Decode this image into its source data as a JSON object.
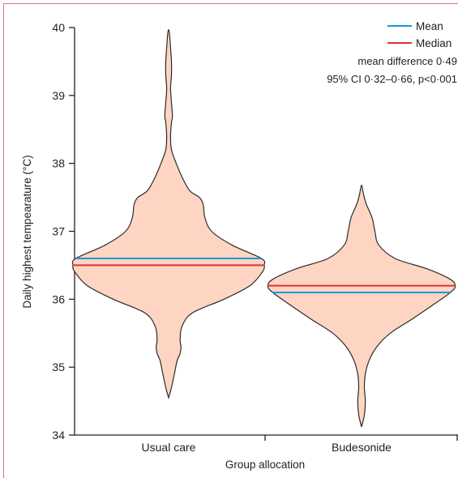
{
  "chart_data": {
    "type": "violin",
    "xlabel": "Group allocation",
    "ylabel": "Daily highest tempearature (°C)",
    "ylim": [
      34,
      40
    ],
    "yticks": [
      "34",
      "35",
      "36",
      "37",
      "38",
      "39",
      "40"
    ],
    "categories": [
      "Usual care",
      "Budesonide"
    ],
    "groups": [
      {
        "name": "Usual care",
        "mean": 36.6,
        "median": 36.5,
        "min": 34.55,
        "max": 39.97,
        "density": [
          [
            34.55,
            0.0
          ],
          [
            34.7,
            0.03
          ],
          [
            34.9,
            0.06
          ],
          [
            35.1,
            0.09
          ],
          [
            35.2,
            0.12
          ],
          [
            35.3,
            0.13
          ],
          [
            35.4,
            0.12
          ],
          [
            35.6,
            0.14
          ],
          [
            35.8,
            0.25
          ],
          [
            36.0,
            0.58
          ],
          [
            36.2,
            0.85
          ],
          [
            36.4,
            0.98
          ],
          [
            36.5,
            1.0
          ],
          [
            36.6,
            0.97
          ],
          [
            36.8,
            0.66
          ],
          [
            37.0,
            0.45
          ],
          [
            37.2,
            0.38
          ],
          [
            37.4,
            0.36
          ],
          [
            37.5,
            0.32
          ],
          [
            37.6,
            0.22
          ],
          [
            37.8,
            0.14
          ],
          [
            38.0,
            0.08
          ],
          [
            38.2,
            0.03
          ],
          [
            38.4,
            0.02
          ],
          [
            38.6,
            0.03
          ],
          [
            38.7,
            0.04
          ],
          [
            38.9,
            0.03
          ],
          [
            39.1,
            0.02
          ],
          [
            39.3,
            0.03
          ],
          [
            39.5,
            0.03
          ],
          [
            39.7,
            0.02
          ],
          [
            39.9,
            0.01
          ],
          [
            39.97,
            0.0
          ]
        ]
      },
      {
        "name": "Budesonide",
        "mean": 36.1,
        "median": 36.2,
        "min": 34.12,
        "max": 37.68,
        "density": [
          [
            34.12,
            0.0
          ],
          [
            34.3,
            0.03
          ],
          [
            34.5,
            0.04
          ],
          [
            34.7,
            0.03
          ],
          [
            34.9,
            0.04
          ],
          [
            35.1,
            0.08
          ],
          [
            35.3,
            0.16
          ],
          [
            35.5,
            0.3
          ],
          [
            35.7,
            0.52
          ],
          [
            35.9,
            0.73
          ],
          [
            36.1,
            0.93
          ],
          [
            36.2,
            0.98
          ],
          [
            36.3,
            0.92
          ],
          [
            36.45,
            0.68
          ],
          [
            36.6,
            0.35
          ],
          [
            36.8,
            0.18
          ],
          [
            37.0,
            0.14
          ],
          [
            37.2,
            0.11
          ],
          [
            37.4,
            0.05
          ],
          [
            37.55,
            0.02
          ],
          [
            37.68,
            0.0
          ]
        ]
      }
    ],
    "legend": {
      "position": "top-right",
      "items": [
        {
          "label": "Mean",
          "color": "#1a9ad6"
        },
        {
          "label": "Median",
          "color": "#e0322e"
        }
      ]
    },
    "annotations": [
      "mean difference 0·49",
      "95% CI 0·32–0·66, p<0·001"
    ],
    "colors": {
      "violin_fill": "#fdd5c2",
      "violin_stroke": "#2b2b2b",
      "mean": "#1a9ad6",
      "median": "#e0322e"
    }
  }
}
